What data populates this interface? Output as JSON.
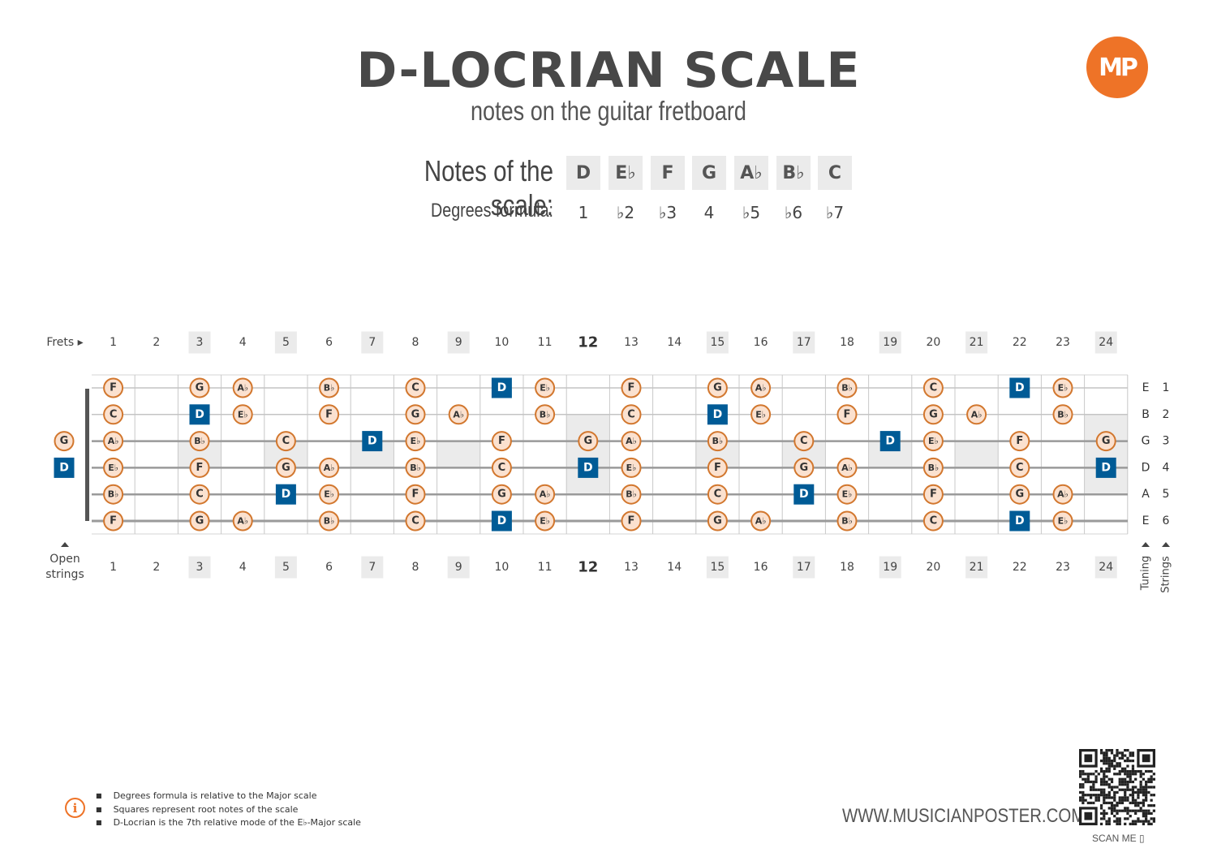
{
  "header": {
    "title": "D-LOCRIAN SCALE",
    "subtitle": "notes on the guitar fretboard",
    "logo_text": "MP"
  },
  "scale": {
    "notes_label": "Notes of the scale:",
    "degrees_label": "Degrees formula:",
    "notes": [
      "D",
      "E♭",
      "F",
      "G",
      "A♭",
      "B♭",
      "C"
    ],
    "degrees": [
      "1",
      "♭2",
      "♭3",
      "4",
      "♭5",
      "♭6",
      "♭7"
    ]
  },
  "fretboard": {
    "frets_label": "Frets ▸",
    "open_strings_label": [
      "Open",
      "strings"
    ],
    "tuning_label": "Tuning",
    "strings_label": "Strings",
    "fret_numbers": [
      "1",
      "2",
      "3",
      "4",
      "5",
      "6",
      "7",
      "8",
      "9",
      "10",
      "11",
      "12",
      "13",
      "14",
      "15",
      "16",
      "17",
      "18",
      "19",
      "20",
      "21",
      "22",
      "23",
      "24"
    ],
    "marker_frets": [
      3,
      5,
      7,
      9,
      12,
      15,
      17,
      19,
      21,
      24
    ],
    "strings": [
      {
        "tuning": "E",
        "number": "1"
      },
      {
        "tuning": "B",
        "number": "2"
      },
      {
        "tuning": "G",
        "number": "3"
      },
      {
        "tuning": "D",
        "number": "4"
      },
      {
        "tuning": "A",
        "number": "5"
      },
      {
        "tuning": "E",
        "number": "6"
      }
    ],
    "open_notes": [
      {
        "string": 3,
        "note": "G",
        "root": false
      },
      {
        "string": 4,
        "note": "D",
        "root": true
      }
    ],
    "notes": [
      {
        "s": 1,
        "f": 1,
        "n": "F"
      },
      {
        "s": 1,
        "f": 3,
        "n": "G"
      },
      {
        "s": 1,
        "f": 4,
        "n": "A♭"
      },
      {
        "s": 1,
        "f": 6,
        "n": "B♭"
      },
      {
        "s": 1,
        "f": 8,
        "n": "C"
      },
      {
        "s": 1,
        "f": 10,
        "n": "D",
        "root": true
      },
      {
        "s": 1,
        "f": 11,
        "n": "E♭"
      },
      {
        "s": 1,
        "f": 13,
        "n": "F"
      },
      {
        "s": 1,
        "f": 15,
        "n": "G"
      },
      {
        "s": 1,
        "f": 16,
        "n": "A♭"
      },
      {
        "s": 1,
        "f": 18,
        "n": "B♭"
      },
      {
        "s": 1,
        "f": 20,
        "n": "C"
      },
      {
        "s": 1,
        "f": 22,
        "n": "D",
        "root": true
      },
      {
        "s": 1,
        "f": 23,
        "n": "E♭"
      },
      {
        "s": 2,
        "f": 1,
        "n": "C"
      },
      {
        "s": 2,
        "f": 3,
        "n": "D",
        "root": true
      },
      {
        "s": 2,
        "f": 4,
        "n": "E♭"
      },
      {
        "s": 2,
        "f": 6,
        "n": "F"
      },
      {
        "s": 2,
        "f": 8,
        "n": "G"
      },
      {
        "s": 2,
        "f": 9,
        "n": "A♭"
      },
      {
        "s": 2,
        "f": 11,
        "n": "B♭"
      },
      {
        "s": 2,
        "f": 13,
        "n": "C"
      },
      {
        "s": 2,
        "f": 15,
        "n": "D",
        "root": true
      },
      {
        "s": 2,
        "f": 16,
        "n": "E♭"
      },
      {
        "s": 2,
        "f": 18,
        "n": "F"
      },
      {
        "s": 2,
        "f": 20,
        "n": "G"
      },
      {
        "s": 2,
        "f": 21,
        "n": "A♭"
      },
      {
        "s": 2,
        "f": 23,
        "n": "B♭"
      },
      {
        "s": 3,
        "f": 1,
        "n": "A♭"
      },
      {
        "s": 3,
        "f": 3,
        "n": "B♭"
      },
      {
        "s": 3,
        "f": 5,
        "n": "C"
      },
      {
        "s": 3,
        "f": 7,
        "n": "D",
        "root": true
      },
      {
        "s": 3,
        "f": 8,
        "n": "E♭"
      },
      {
        "s": 3,
        "f": 10,
        "n": "F"
      },
      {
        "s": 3,
        "f": 12,
        "n": "G"
      },
      {
        "s": 3,
        "f": 13,
        "n": "A♭"
      },
      {
        "s": 3,
        "f": 15,
        "n": "B♭"
      },
      {
        "s": 3,
        "f": 17,
        "n": "C"
      },
      {
        "s": 3,
        "f": 19,
        "n": "D",
        "root": true
      },
      {
        "s": 3,
        "f": 20,
        "n": "E♭"
      },
      {
        "s": 3,
        "f": 22,
        "n": "F"
      },
      {
        "s": 3,
        "f": 24,
        "n": "G"
      },
      {
        "s": 4,
        "f": 1,
        "n": "E♭"
      },
      {
        "s": 4,
        "f": 3,
        "n": "F"
      },
      {
        "s": 4,
        "f": 5,
        "n": "G"
      },
      {
        "s": 4,
        "f": 6,
        "n": "A♭"
      },
      {
        "s": 4,
        "f": 8,
        "n": "B♭"
      },
      {
        "s": 4,
        "f": 10,
        "n": "C"
      },
      {
        "s": 4,
        "f": 12,
        "n": "D",
        "root": true
      },
      {
        "s": 4,
        "f": 13,
        "n": "E♭"
      },
      {
        "s": 4,
        "f": 15,
        "n": "F"
      },
      {
        "s": 4,
        "f": 17,
        "n": "G"
      },
      {
        "s": 4,
        "f": 18,
        "n": "A♭"
      },
      {
        "s": 4,
        "f": 20,
        "n": "B♭"
      },
      {
        "s": 4,
        "f": 22,
        "n": "C"
      },
      {
        "s": 4,
        "f": 24,
        "n": "D",
        "root": true
      },
      {
        "s": 5,
        "f": 1,
        "n": "B♭"
      },
      {
        "s": 5,
        "f": 3,
        "n": "C"
      },
      {
        "s": 5,
        "f": 5,
        "n": "D",
        "root": true
      },
      {
        "s": 5,
        "f": 6,
        "n": "E♭"
      },
      {
        "s": 5,
        "f": 8,
        "n": "F"
      },
      {
        "s": 5,
        "f": 10,
        "n": "G"
      },
      {
        "s": 5,
        "f": 11,
        "n": "A♭"
      },
      {
        "s": 5,
        "f": 13,
        "n": "B♭"
      },
      {
        "s": 5,
        "f": 15,
        "n": "C"
      },
      {
        "s": 5,
        "f": 17,
        "n": "D",
        "root": true
      },
      {
        "s": 5,
        "f": 18,
        "n": "E♭"
      },
      {
        "s": 5,
        "f": 20,
        "n": "F"
      },
      {
        "s": 5,
        "f": 22,
        "n": "G"
      },
      {
        "s": 5,
        "f": 23,
        "n": "A♭"
      },
      {
        "s": 6,
        "f": 1,
        "n": "F"
      },
      {
        "s": 6,
        "f": 3,
        "n": "G"
      },
      {
        "s": 6,
        "f": 4,
        "n": "A♭"
      },
      {
        "s": 6,
        "f": 6,
        "n": "B♭"
      },
      {
        "s": 6,
        "f": 8,
        "n": "C"
      },
      {
        "s": 6,
        "f": 10,
        "n": "D",
        "root": true
      },
      {
        "s": 6,
        "f": 11,
        "n": "E♭"
      },
      {
        "s": 6,
        "f": 13,
        "n": "F"
      },
      {
        "s": 6,
        "f": 15,
        "n": "G"
      },
      {
        "s": 6,
        "f": 16,
        "n": "A♭"
      },
      {
        "s": 6,
        "f": 18,
        "n": "B♭"
      },
      {
        "s": 6,
        "f": 20,
        "n": "C"
      },
      {
        "s": 6,
        "f": 22,
        "n": "D",
        "root": true
      },
      {
        "s": 6,
        "f": 23,
        "n": "E♭"
      }
    ]
  },
  "colors": {
    "root_fill": "#005b96",
    "note_fill": "#fbe1cf",
    "note_stroke": "#d2772e",
    "marker_fill": "#ebebeb",
    "accent": "#ee7327"
  },
  "footer": {
    "notes": [
      "Degrees formula is relative to the Major scale",
      "Squares represent root notes of the scale",
      "D-Locrian is the 7th relative mode of the E♭-Major scale"
    ],
    "website": "WWW.MUSICIANPOSTER.COM",
    "scan_label": "SCAN ME ▯"
  }
}
